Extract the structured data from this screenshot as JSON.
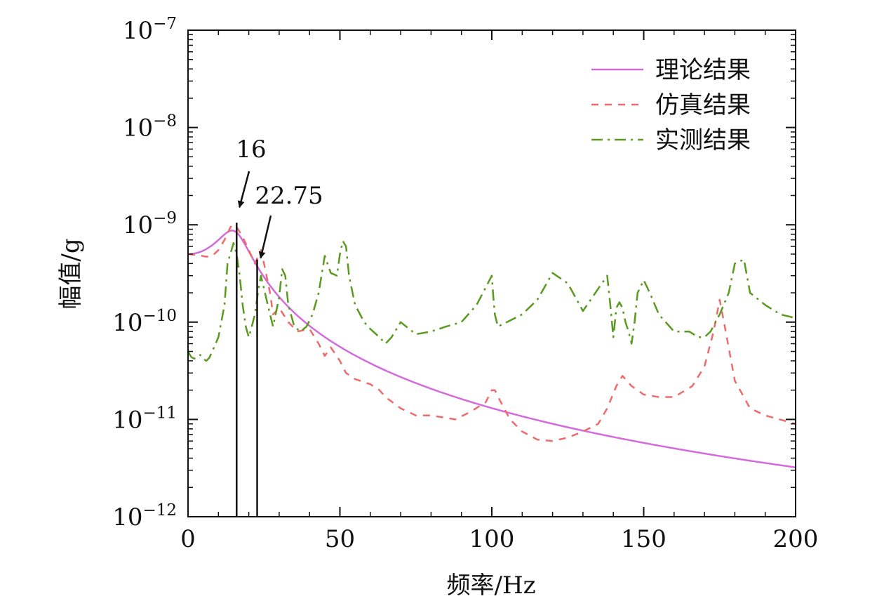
{
  "chart_data": {
    "type": "line",
    "title": "",
    "xlabel": "频率/Hz",
    "ylabel": "幅值/g",
    "xlim": [
      0,
      200
    ],
    "ylim_log10": [
      -12,
      -7
    ],
    "yscale": "log",
    "x_ticks": [
      0,
      50,
      100,
      150,
      200
    ],
    "x_tick_labels": [
      "0",
      "50",
      "100",
      "150",
      "200"
    ],
    "y_ticks_exp": [
      -7,
      -8,
      -9,
      -10,
      -11,
      -12
    ],
    "y_tick_base": "10",
    "y_tick_exponents": [
      "−7",
      "−8",
      "−9",
      "−10",
      "−11",
      "−12"
    ],
    "grid": false,
    "legend_position": "top-right",
    "series": [
      {
        "name": "理论结果",
        "style": "solid",
        "color": "#d46bdc",
        "model": {
          "type": "sdof",
          "fn": 16,
          "zeta": 0.3,
          "static": 5e-10
        }
      },
      {
        "name": "仿真结果",
        "style": "dashed",
        "color": "#ee6b6b",
        "x": [
          0,
          3,
          6,
          8,
          10,
          12,
          14,
          15,
          16,
          18,
          20,
          22,
          24,
          25,
          27,
          28,
          30,
          33,
          36,
          40,
          43,
          45,
          47,
          50,
          52,
          55,
          60,
          63,
          65,
          70,
          75,
          80,
          88,
          93,
          98,
          100,
          101,
          103,
          106,
          110,
          115,
          120,
          125,
          130,
          135,
          138,
          141,
          143,
          146,
          150,
          155,
          160,
          166,
          170,
          173,
          175,
          177,
          180,
          185,
          190,
          200
        ],
        "y": [
          5e-10,
          4.9e-10,
          4.7e-10,
          4.8e-10,
          5.5e-10,
          7e-10,
          9.5e-10,
          1e-09,
          9.5e-10,
          7.5e-10,
          5.5e-10,
          4e-10,
          5.5e-10,
          4e-10,
          2e-10,
          1.2e-10,
          1.4e-10,
          1e-10,
          8e-11,
          8.5e-11,
          6e-11,
          4.5e-11,
          5.5e-11,
          4e-11,
          3e-11,
          2.6e-11,
          2.3e-11,
          2e-11,
          1.7e-11,
          1.3e-11,
          1.1e-11,
          1.1e-11,
          1e-11,
          1.2e-11,
          1.5e-11,
          2e-11,
          2e-11,
          1.5e-11,
          1e-11,
          7.5e-12,
          6.2e-12,
          6e-12,
          6.5e-12,
          7.5e-12,
          9e-12,
          1.3e-11,
          2.2e-11,
          2.8e-11,
          2.2e-11,
          1.8e-11,
          1.7e-11,
          1.7e-11,
          2.2e-11,
          3.5e-11,
          8e-11,
          1.7e-10,
          8e-11,
          2.5e-11,
          1.3e-11,
          1.1e-11,
          9e-12
        ]
      },
      {
        "name": "实测结果",
        "style": "dashdot",
        "color": "#5a9a1e",
        "x": [
          0,
          1,
          2,
          3,
          4,
          5,
          6,
          7,
          8,
          10,
          12,
          13,
          15,
          16,
          17,
          18,
          19,
          20,
          21,
          22,
          23,
          24,
          25,
          27,
          28,
          30,
          31,
          32,
          33,
          35,
          37,
          39,
          41,
          43,
          45,
          47,
          49,
          50,
          51,
          52,
          53,
          55,
          58,
          60,
          63,
          65,
          67,
          70,
          75,
          80,
          85,
          90,
          95,
          100,
          100.5,
          101,
          102,
          105,
          110,
          115,
          120,
          125,
          130,
          135,
          138,
          139,
          140,
          141,
          142,
          143,
          144,
          145,
          146,
          147,
          148,
          150,
          152,
          155,
          160,
          165,
          168,
          170,
          172,
          175,
          178,
          180,
          183,
          185,
          190,
          195,
          200
        ],
        "y": [
          5e-11,
          4.4e-11,
          4.2e-11,
          4.4e-11,
          4.6e-11,
          4.2e-11,
          4e-11,
          4.3e-11,
          5e-11,
          7e-11,
          1.5e-10,
          4e-10,
          6.5e-10,
          5e-10,
          3e-10,
          1.5e-10,
          9e-11,
          7e-11,
          9e-11,
          1.2e-10,
          2e-10,
          3e-10,
          2.2e-10,
          1.2e-10,
          9e-11,
          1.8e-10,
          3.5e-10,
          3e-10,
          1.5e-10,
          9e-11,
          8e-11,
          9e-11,
          1.2e-10,
          2e-10,
          4.8e-10,
          3.2e-10,
          3e-10,
          5e-10,
          6.8e-10,
          6e-10,
          3e-10,
          1.5e-10,
          1e-10,
          8.5e-11,
          7e-11,
          6e-11,
          7e-11,
          1e-10,
          7.5e-11,
          8e-11,
          9e-11,
          1e-10,
          1.5e-10,
          3e-10,
          1.8e-10,
          1.2e-10,
          9e-11,
          1e-10,
          1.2e-10,
          1.7e-10,
          3.2e-10,
          2.5e-10,
          1.3e-10,
          2.2e-10,
          3e-10,
          1.5e-10,
          7e-11,
          1.4e-10,
          1.6e-10,
          1.4e-10,
          1e-10,
          8e-11,
          6e-11,
          1e-10,
          2e-10,
          2.7e-10,
          2e-10,
          1.2e-10,
          8e-11,
          8e-11,
          7e-11,
          7e-11,
          8e-11,
          1.2e-10,
          2e-10,
          4e-10,
          4.4e-10,
          2e-10,
          1.5e-10,
          1.2e-10,
          1.1e-10
        ]
      }
    ],
    "annotations": [
      {
        "label": "16",
        "x": 16,
        "y_top": 1.05e-09
      },
      {
        "label": "22.75",
        "x": 22.75,
        "y_top": 4.4e-10
      }
    ]
  }
}
